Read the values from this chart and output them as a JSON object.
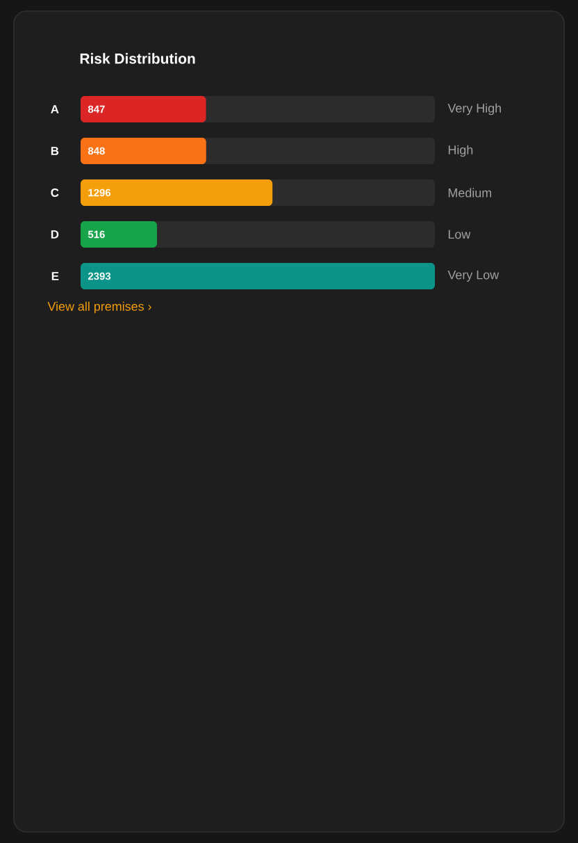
{
  "chart_data": {
    "type": "bar",
    "orientation": "horizontal",
    "title": "Risk Distribution",
    "categories": [
      "A",
      "B",
      "C",
      "D",
      "E"
    ],
    "values": [
      847,
      848,
      1296,
      516,
      2393
    ],
    "colors": [
      "#dc2626",
      "#f97316",
      "#f59e0b",
      "#16a34a",
      "#0d9488"
    ],
    "xlim": [
      0,
      2393
    ],
    "data_labels": true,
    "tick_labels": "y",
    "annotations": [
      "Very High",
      "High",
      "Medium",
      "Low",
      "Very Low",
      "View all premises ›"
    ]
  }
}
